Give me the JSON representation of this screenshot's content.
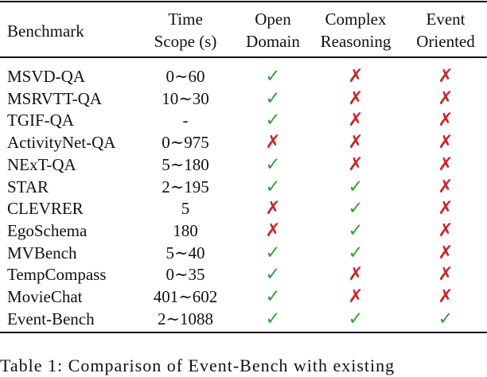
{
  "table": {
    "header": [
      [
        "Benchmark"
      ],
      [
        "Time",
        "Scope (s)"
      ],
      [
        "Open",
        "Domain"
      ],
      [
        "Complex",
        "Reasoning"
      ],
      [
        "Event",
        "Oriented"
      ]
    ],
    "rows": [
      [
        "MSVD-QA",
        "0∼60",
        "✓",
        "✗",
        "✗"
      ],
      [
        "MSRVTT-QA",
        "10∼30",
        "✓",
        "✗",
        "✗"
      ],
      [
        "TGIF-QA",
        "-",
        "✓",
        "✗",
        "✗"
      ],
      [
        "ActivityNet-QA",
        "0∼975",
        "✗",
        "✗",
        "✗"
      ],
      [
        "NExT-QA",
        "5∼180",
        "✓",
        "✗",
        "✗"
      ],
      [
        "STAR",
        "2∼195",
        "✓",
        "✓",
        "✗"
      ],
      [
        "CLEVRER",
        "5",
        "✗",
        "✓",
        "✗"
      ],
      [
        "EgoSchema",
        "180",
        "✗",
        "✓",
        "✗"
      ],
      [
        "MVBench",
        "5∼40",
        "✓",
        "✓",
        "✗"
      ],
      [
        "TempCompass",
        "0∼35",
        "✓",
        "✗",
        "✗"
      ],
      [
        "MovieChat",
        "401∼602",
        "✓",
        "✗",
        "✗"
      ],
      [
        "Event-Bench",
        "2∼1088",
        "✓",
        "✓",
        "✓"
      ]
    ],
    "symbol_colors": {
      "✓": "#3d9b3d",
      "✗": "#c8262e"
    }
  },
  "caption": "Table 1: Comparison of Event-Bench with existing"
}
